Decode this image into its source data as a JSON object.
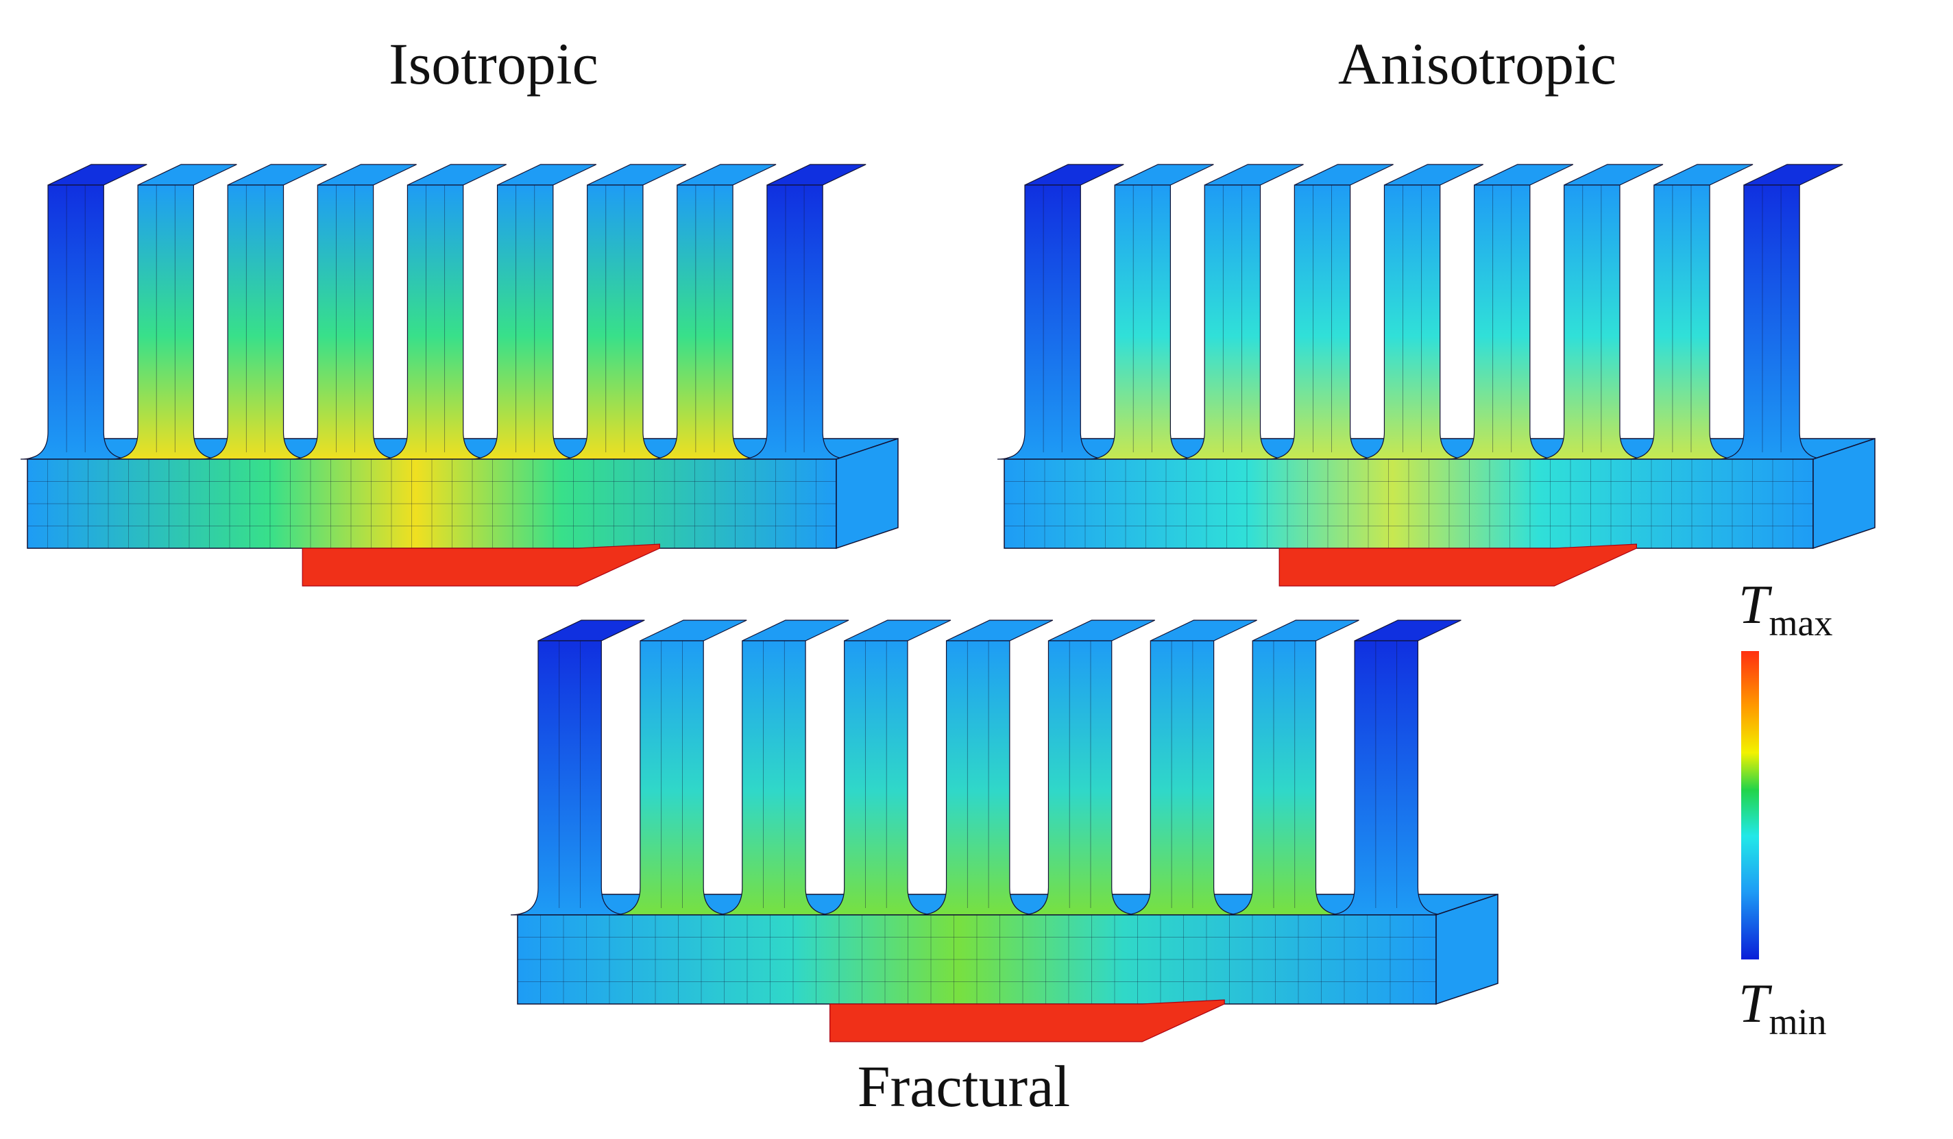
{
  "panels": [
    {
      "key": "isotropic",
      "title": "Isotropic",
      "hot_color": "#f0e020",
      "mid_color": "#38e08a",
      "fin_count": 9
    },
    {
      "key": "anisotropic",
      "title": "Anisotropic",
      "hot_color": "#c8e850",
      "mid_color": "#30e0d8",
      "fin_count": 9
    },
    {
      "key": "fractural",
      "title": "Fractural",
      "hot_color": "#78e040",
      "mid_color": "#30d8c8",
      "fin_count": 9
    }
  ],
  "legend": {
    "max_symbol": "T",
    "max_sub": "max",
    "min_symbol": "T",
    "min_sub": "min",
    "colors": [
      "#ff3010",
      "#ff9a00",
      "#f2f200",
      "#22d44a",
      "#22e8e8",
      "#1e9cf5",
      "#0a1ed8"
    ]
  },
  "colors": {
    "cold": "#1030e0",
    "cool": "#1e9cf5",
    "source": "#f03018"
  }
}
